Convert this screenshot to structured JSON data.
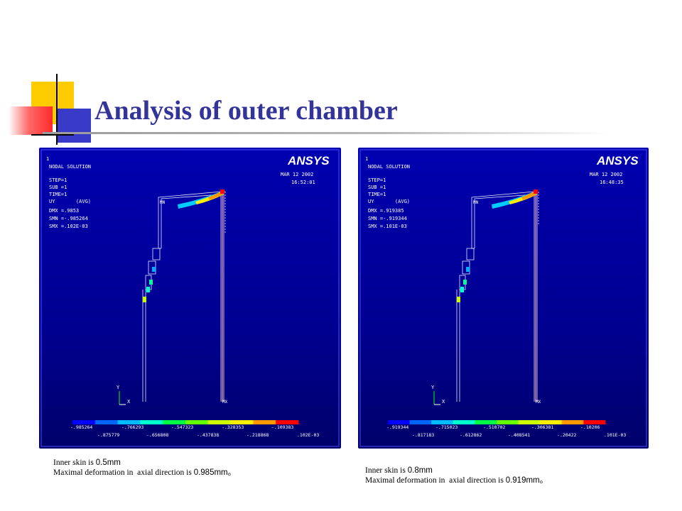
{
  "slide": {
    "title": "Analysis of outer chamber",
    "accent_colors": [
      "#ffcc00",
      "#ff3333",
      "#3333cc"
    ]
  },
  "panels": [
    {
      "software": "ANSYS",
      "frame": "1",
      "heading": "NODAL SOLUTION",
      "step": "STEP=1",
      "sub": "SUB =1",
      "time": "TIME=1",
      "uy": "UY       (AVG)",
      "dmx": "DMX =.9853",
      "smn": "SMN =-.985264",
      "smx": "SMX =.102E-03",
      "date": "MAR 12 2002",
      "clock": "16:52:01",
      "mn_label": "MN",
      "mx_label": "MX",
      "axis_y": "Y",
      "axis_x": "X",
      "legend_top": [
        "-.985264",
        "-.766293",
        "-.547323",
        "-.328353",
        "-.109383"
      ],
      "legend_bottom": [
        "-.875779",
        "-.656808",
        "-.437838",
        "-.218868",
        ".102E-03"
      ],
      "caption_line1_text": "Inner skin is ",
      "caption_line1_value": "0.5mm",
      "caption_line2_text": "Maximal deformation in  axial direction is ",
      "caption_line2_value": "0.985mm。"
    },
    {
      "software": "ANSYS",
      "frame": "1",
      "heading": "NODAL SOLUTION",
      "step": "STEP=1",
      "sub": "SUB =1",
      "time": "TIME=1",
      "uy": "UY       (AVG)",
      "dmx": "DMX =.919385",
      "smn": "SMN =-.919344",
      "smx": "SMX =.101E-03",
      "date": "MAR 12 2002",
      "clock": "16:48:35",
      "mn_label": "MN",
      "mx_label": "MX",
      "axis_y": "Y",
      "axis_x": "X",
      "legend_top": [
        "-.919344",
        "-.715023",
        "-.510702",
        "-.306381",
        "-.10206"
      ],
      "legend_bottom": [
        "-.817183",
        "-.612862",
        "-.408541",
        "-.20422",
        ".101E-03"
      ],
      "caption_line1_text": "Inner skin is ",
      "caption_line1_value": "0.8mm",
      "caption_line2_text": "Maximal deformation in  axial direction is ",
      "caption_line2_value": "0.919mm。"
    }
  ],
  "legend_colors": [
    "#0000ff",
    "#0066ff",
    "#00bbff",
    "#00ffcc",
    "#00ff44",
    "#66ff00",
    "#ccff00",
    "#ffee00",
    "#ff9900",
    "#ff0000"
  ]
}
